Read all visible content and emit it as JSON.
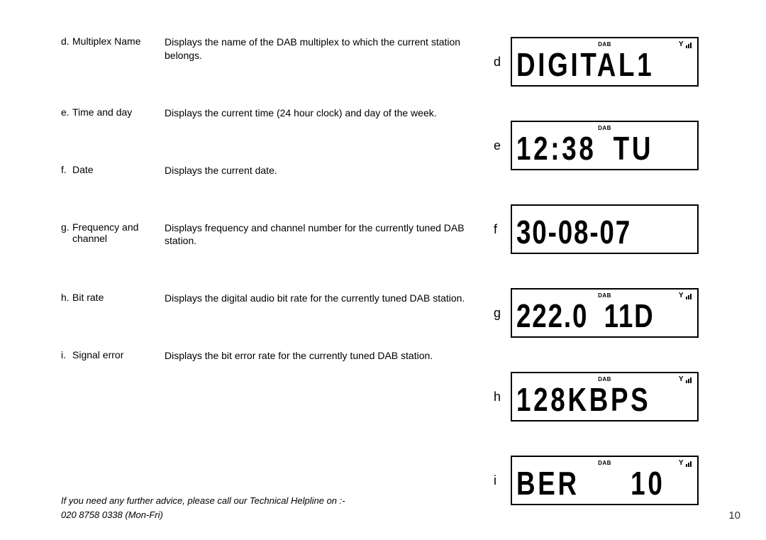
{
  "rows": [
    {
      "letter": "d.",
      "term": "Multiplex Name",
      "desc": "Displays the name of the DAB multiplex to which the current station belongs."
    },
    {
      "letter": "e.",
      "term": "Time and day",
      "desc": "Displays the current time (24 hour clock) and day of the week."
    },
    {
      "letter": "f.",
      "term": "Date",
      "desc": "Displays the current date."
    },
    {
      "letter": "g.",
      "term": "Frequency and channel",
      "desc": "Displays frequency and channel number for the currently tuned DAB station."
    },
    {
      "letter": "h.",
      "term": "Bit rate",
      "desc": "Displays the digital audio bit rate for the currently tuned DAB station."
    },
    {
      "letter": "i.",
      "term": "Signal error",
      "desc": "Displays the bit error rate for the currently tuned DAB station."
    }
  ],
  "lcd": [
    {
      "label": "d",
      "text": "DIGITAL1",
      "dab": true,
      "signal": true
    },
    {
      "label": "e",
      "text": "12:38 TU",
      "dab": true,
      "signal": false
    },
    {
      "label": "f",
      "text": "30-08-07",
      "dab": false,
      "signal": false
    },
    {
      "label": "g",
      "text": "222.0 11D",
      "dab": true,
      "signal": true
    },
    {
      "label": "h",
      "text": "128KBPS",
      "dab": true,
      "signal": true
    },
    {
      "label": "i",
      "text": "BER   10",
      "dab": true,
      "signal": true
    }
  ],
  "footer": {
    "line1": "If you need any further advice, please call our Technical Helpline on :-",
    "line2": "020 8758 0338 (Mon-Fri)",
    "page": "10"
  },
  "icons": {
    "dab_text": "DAB"
  },
  "row_margins": [
    62,
    62,
    64,
    62,
    62,
    0
  ]
}
